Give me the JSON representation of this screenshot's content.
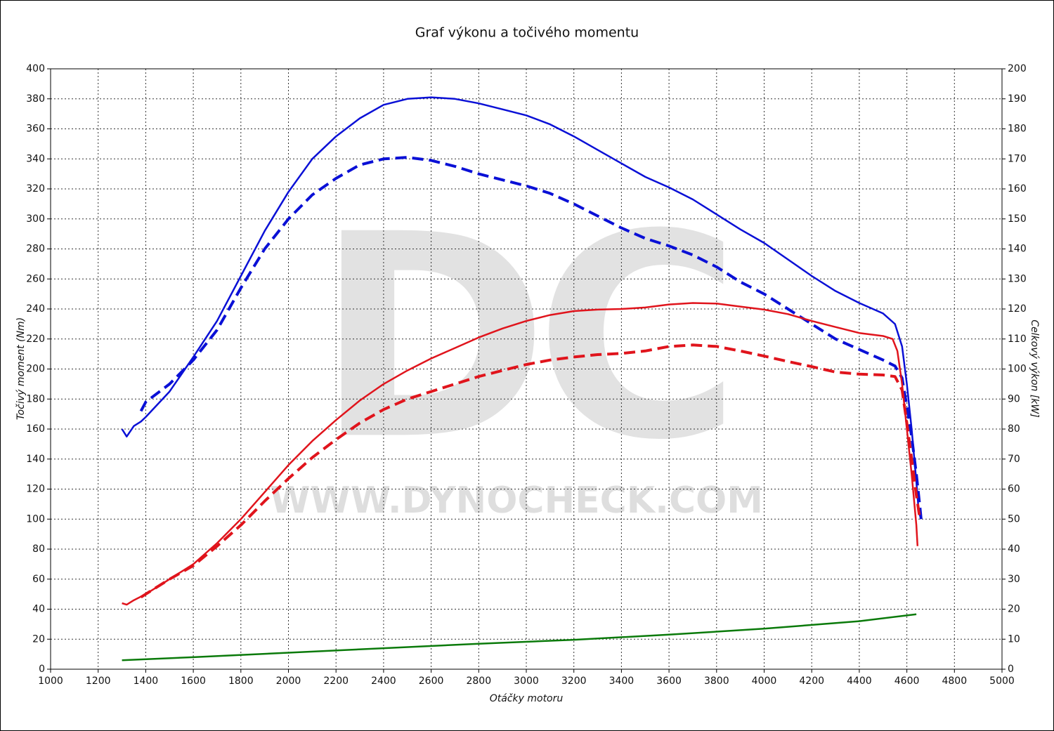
{
  "chart_data": {
    "type": "line",
    "title": "Graf výkonu a točivého momentu",
    "xlabel": "Otáčky motoru",
    "ylabel": "Točivý moment (Nm)",
    "y2label": "Celkový výkon [kW]",
    "watermark_logo": "DC",
    "watermark": "WWW.DYNOCHECK.COM",
    "xlim": [
      1000,
      5000
    ],
    "xticks": [
      1000,
      1200,
      1400,
      1600,
      1800,
      2000,
      2200,
      2400,
      2600,
      2800,
      3000,
      3200,
      3400,
      3600,
      3800,
      4000,
      4200,
      4400,
      4600,
      4800,
      5000
    ],
    "ylim": [
      0,
      400
    ],
    "yticks": [
      0,
      20,
      40,
      60,
      80,
      100,
      120,
      140,
      160,
      180,
      200,
      220,
      240,
      260,
      280,
      300,
      320,
      340,
      360,
      380,
      400
    ],
    "y2lim": [
      0,
      200
    ],
    "y2ticks": [
      0,
      10,
      20,
      30,
      40,
      50,
      60,
      70,
      80,
      90,
      100,
      110,
      120,
      130,
      140,
      150,
      160,
      170,
      180,
      190,
      200
    ],
    "grid": true,
    "series": [
      {
        "color": "#0a10d6",
        "dash": false,
        "x": [
          1300,
          1320,
          1350,
          1380,
          1400,
          1500,
          1600,
          1700,
          1800,
          1900,
          2000,
          2100,
          2200,
          2300,
          2400,
          2500,
          2600,
          2700,
          2800,
          2900,
          3000,
          3100,
          3200,
          3300,
          3400,
          3500,
          3600,
          3700,
          3800,
          3900,
          4000,
          4100,
          4200,
          4300,
          4400,
          4500,
          4550,
          4580,
          4600,
          4620,
          4640,
          4650,
          4660
        ],
        "values": [
          160,
          155,
          162,
          165,
          168,
          185,
          208,
          232,
          262,
          292,
          318,
          340,
          355,
          367,
          376,
          380,
          381,
          380,
          377,
          373,
          369,
          363,
          355,
          346,
          337,
          328,
          321,
          313,
          303,
          293,
          284,
          273,
          262,
          252,
          244,
          237,
          230,
          215,
          190,
          160,
          125,
          105,
          100
        ]
      },
      {
        "color": "#0a10d6",
        "dash": true,
        "x": [
          1380,
          1400,
          1500,
          1600,
          1700,
          1800,
          1900,
          2000,
          2100,
          2200,
          2300,
          2400,
          2500,
          2600,
          2700,
          2800,
          2900,
          3000,
          3100,
          3200,
          3300,
          3400,
          3500,
          3600,
          3700,
          3800,
          3900,
          4000,
          4100,
          4200,
          4300,
          4400,
          4500,
          4550,
          4580,
          4600,
          4620,
          4640,
          4655,
          4660
        ],
        "values": [
          172,
          178,
          190,
          206,
          226,
          254,
          280,
          300,
          316,
          327,
          336,
          340,
          341,
          339,
          335,
          330,
          326,
          322,
          317,
          310,
          302,
          294,
          287,
          282,
          276,
          268,
          258,
          250,
          240,
          230,
          220,
          213,
          206,
          202,
          194,
          175,
          155,
          130,
          108,
          100
        ]
      },
      {
        "color": "#e0141c",
        "dash": false,
        "axis": "y2",
        "x": [
          1300,
          1320,
          1350,
          1400,
          1500,
          1600,
          1700,
          1800,
          1900,
          2000,
          2100,
          2200,
          2300,
          2400,
          2500,
          2600,
          2700,
          2800,
          2900,
          3000,
          3100,
          3200,
          3300,
          3400,
          3500,
          3600,
          3700,
          3800,
          3900,
          4000,
          4100,
          4200,
          4300,
          4400,
          4500,
          4540,
          4560,
          4580,
          4600,
          4620,
          4640,
          4645
        ],
        "values": [
          22,
          21.5,
          23,
          25,
          30,
          35,
          42,
          50,
          59,
          68,
          76,
          83,
          89.5,
          95,
          99.5,
          103.5,
          107,
          110.5,
          113.5,
          116,
          118,
          119.3,
          119.8,
          120,
          120.5,
          121.5,
          122,
          121.8,
          120.8,
          119.8,
          118.3,
          116,
          114,
          112,
          111,
          110,
          106,
          95,
          80,
          65,
          48,
          41
        ]
      },
      {
        "color": "#e0141c",
        "dash": true,
        "axis": "y2",
        "x": [
          1380,
          1400,
          1500,
          1600,
          1700,
          1800,
          1900,
          2000,
          2100,
          2200,
          2300,
          2400,
          2500,
          2600,
          2700,
          2800,
          2900,
          3000,
          3100,
          3200,
          3300,
          3400,
          3500,
          3600,
          3700,
          3800,
          3900,
          4000,
          4100,
          4200,
          4300,
          4400,
          4500,
          4550,
          4580,
          4600,
          4620,
          4640,
          4655
        ],
        "values": [
          24,
          25,
          30,
          34.5,
          41,
          48,
          56,
          63.5,
          70.5,
          76.5,
          82,
          86.5,
          90,
          92.5,
          95,
          97.5,
          99.5,
          101.5,
          103,
          104,
          104.8,
          105.2,
          106,
          107.5,
          108,
          107.5,
          106,
          104.3,
          102.5,
          100.8,
          99,
          98.3,
          98,
          97.5,
          93,
          82,
          70,
          58,
          50
        ]
      },
      {
        "color": "#0a7a0a",
        "dash": false,
        "axis": "y2",
        "x": [
          1300,
          1600,
          2000,
          2400,
          2800,
          3200,
          3600,
          4000,
          4400,
          4640
        ],
        "values": [
          3,
          4,
          5.5,
          7,
          8.5,
          9.8,
          11.5,
          13.5,
          16,
          18.3
        ]
      }
    ]
  }
}
